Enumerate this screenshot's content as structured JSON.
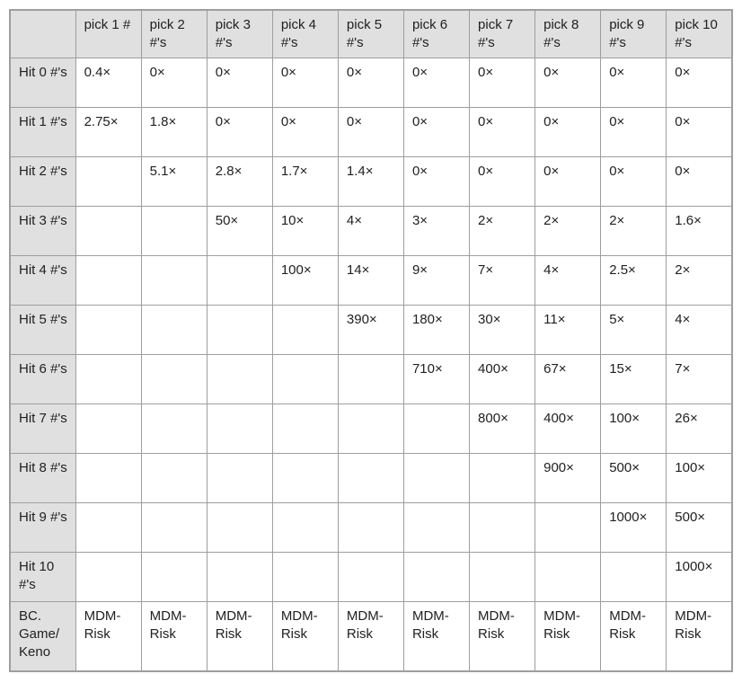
{
  "table": {
    "columns": [
      "",
      "pick 1 #",
      "pick 2 #'s",
      "pick 3 #'s",
      "pick 4 #'s",
      "pick 5 #'s",
      "pick 6 #'s",
      "pick 7 #'s",
      "pick 8 #'s",
      "pick 9 #'s",
      "pick 10 #'s"
    ],
    "rows": [
      {
        "label": "Hit 0 #'s",
        "footer": false,
        "cells": [
          "0.4×",
          "0×",
          "0×",
          "0×",
          "0×",
          "0×",
          "0×",
          "0×",
          "0×",
          "0×"
        ]
      },
      {
        "label": "Hit 1 #'s",
        "footer": false,
        "cells": [
          "2.75×",
          "1.8×",
          "0×",
          "0×",
          "0×",
          "0×",
          "0×",
          "0×",
          "0×",
          "0×"
        ]
      },
      {
        "label": "Hit 2 #'s",
        "footer": false,
        "cells": [
          "",
          "5.1×",
          "2.8×",
          "1.7×",
          "1.4×",
          "0×",
          "0×",
          "0×",
          "0×",
          "0×"
        ]
      },
      {
        "label": "Hit 3 #'s",
        "footer": false,
        "cells": [
          "",
          "",
          "50×",
          "10×",
          "4×",
          "3×",
          "2×",
          "2×",
          "2×",
          "1.6×"
        ]
      },
      {
        "label": "Hit 4 #'s",
        "footer": false,
        "cells": [
          "",
          "",
          "",
          "100×",
          "14×",
          "9×",
          "7×",
          "4×",
          "2.5×",
          "2×"
        ]
      },
      {
        "label": "Hit 5 #'s",
        "footer": false,
        "cells": [
          "",
          "",
          "",
          "",
          "390×",
          "180×",
          "30×",
          "11×",
          "5×",
          "4×"
        ]
      },
      {
        "label": "Hit 6 #'s",
        "footer": false,
        "cells": [
          "",
          "",
          "",
          "",
          "",
          "710×",
          "400×",
          "67×",
          "15×",
          "7×"
        ]
      },
      {
        "label": "Hit 7 #'s",
        "footer": false,
        "cells": [
          "",
          "",
          "",
          "",
          "",
          "",
          "800×",
          "400×",
          "100×",
          "26×"
        ]
      },
      {
        "label": "Hit 8 #'s",
        "footer": false,
        "cells": [
          "",
          "",
          "",
          "",
          "",
          "",
          "",
          "900×",
          "500×",
          "100×"
        ]
      },
      {
        "label": "Hit 9 #'s",
        "footer": false,
        "cells": [
          "",
          "",
          "",
          "",
          "",
          "",
          "",
          "",
          "1000×",
          "500×"
        ]
      },
      {
        "label": "Hit 10 #'s",
        "footer": false,
        "cells": [
          "",
          "",
          "",
          "",
          "",
          "",
          "",
          "",
          "",
          "1000×"
        ]
      },
      {
        "label": "BC. Game/ Keno",
        "footer": true,
        "cells": [
          "MDM-Risk",
          "MDM-Risk",
          "MDM-Risk",
          "MDM-Risk",
          "MDM-Risk",
          "MDM-Risk",
          "MDM-Risk",
          "MDM-Risk",
          "MDM-Risk",
          "MDM-Risk"
        ]
      }
    ]
  }
}
